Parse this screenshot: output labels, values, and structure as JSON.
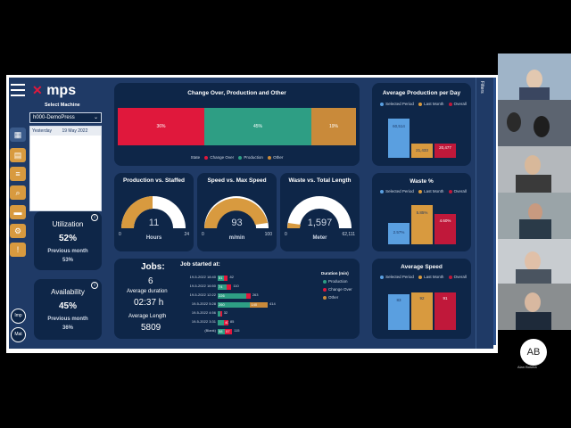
{
  "brand": {
    "logo_text": "mps",
    "select_label": "Select Machine",
    "machine": "h000-DemoPress",
    "date_preset": "Yesterday",
    "date": "19 May 2022"
  },
  "filters_label": "Filters",
  "colors": {
    "production": "#2e9e84",
    "changeover": "#e0183c",
    "other": "#c98a3a",
    "selected": "#5a9fe0",
    "last_month": "#d89a3f",
    "overall": "#c0183a",
    "gauge_bg": "#ffffff",
    "gauge_fill": "#d89a3f"
  },
  "changeover": {
    "title": "Change Over, Production and Other",
    "legend_label": "State",
    "legend": [
      "Change Over",
      "Production",
      "Other"
    ],
    "labels": [
      "36%",
      "45%",
      "19%"
    ]
  },
  "avg_prod": {
    "title": "Average Production per Day",
    "legend": [
      "Selected Period",
      "Last Month",
      "Overall"
    ],
    "labels": [
      "60,514",
      "21,433",
      "20,477"
    ]
  },
  "waste_pct": {
    "title": "Waste %",
    "legend": [
      "Selected Period",
      "Last Month",
      "Overall"
    ],
    "labels": [
      "2.57%",
      "5.85%",
      "4.60%"
    ]
  },
  "avg_speed": {
    "title": "Average Speed",
    "legend": [
      "Selected Period",
      "Last Month",
      "Overall"
    ],
    "labels": [
      "83",
      "92",
      "91"
    ]
  },
  "gauges": [
    {
      "title": "Production vs. Staffed",
      "value": "11",
      "unit": "Hours",
      "min": "0",
      "max": "24"
    },
    {
      "title": "Speed vs. Max Speed",
      "value": "93",
      "unit": "m/min",
      "min": "0",
      "max": "100"
    },
    {
      "title": "Waste vs. Total Length",
      "value": "1,597",
      "unit": "Meter",
      "min": "0",
      "max": "62,111"
    }
  ],
  "utilization": {
    "title": "Utilization",
    "value": "52%",
    "prev_label": "Previous month",
    "prev": "53%"
  },
  "availability": {
    "title": "Availability",
    "value": "45%",
    "prev_label": "Previous month",
    "prev": "36%"
  },
  "jobs": {
    "title": "Jobs:",
    "count": "6",
    "avg_dur_label": "Average duration",
    "avg_dur": "02:37 h",
    "avg_len_label": "Average Length",
    "avg_len": "5809"
  },
  "jobstart": {
    "title": "Job started at:",
    "legend_title": "Duration (min)",
    "legend": [
      "Production",
      "Change Over",
      "Other"
    ],
    "rows": [
      {
        "label": "19-5-2022 18:40",
        "a": "51",
        "b": "",
        "total": "82"
      },
      {
        "label": "19-5-2022 16:50",
        "a": "74",
        "b": "",
        "total": "110"
      },
      {
        "label": "19-5-2022 12:22",
        "a": "226",
        "b": "",
        "total": "263"
      },
      {
        "label": "19-5-2022 5:28",
        "a": "260",
        "b": "140",
        "total": "414"
      },
      {
        "label": "19-5-2022 4:56",
        "a": "",
        "b": "",
        "total": "32"
      },
      {
        "label": "19-5-2022 3:31",
        "a": "",
        "b": "40",
        "total": "85"
      },
      {
        "label": "(Blank)",
        "a": "58",
        "b": "57",
        "total": "115"
      }
    ]
  },
  "nav": {
    "imp": "Imp",
    "mat": "Mat"
  },
  "participant": {
    "initials": "AB",
    "name": "Alan Bosma"
  }
}
